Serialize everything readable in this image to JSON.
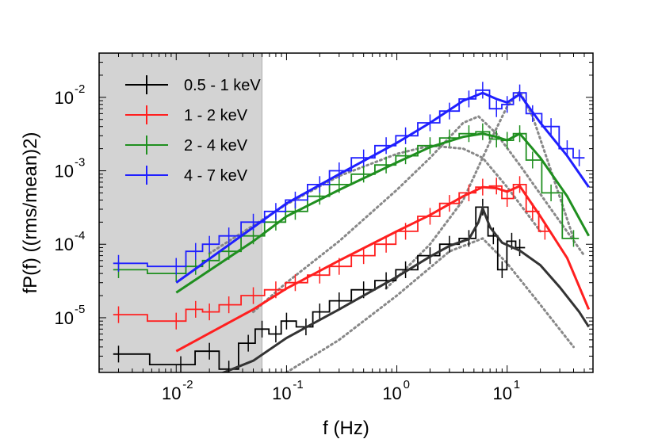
{
  "chart_data": {
    "type": "line",
    "xlabel": "f (Hz)",
    "ylabel": "fP(f) ((rms/mean)2)",
    "xscale": "log",
    "yscale": "log",
    "xlim": [
      0.002,
      60
    ],
    "ylim": [
      1.8e-06,
      0.04
    ],
    "grid": false,
    "legend_position": "top-left",
    "shaded_region": {
      "x_from": 0.002,
      "x_to": 0.06,
      "color": "#d3d3d3"
    },
    "x_ticks": [
      {
        "base": "10",
        "exp": "-2",
        "value": 0.01
      },
      {
        "base": "10",
        "exp": "-1",
        "value": 0.1
      },
      {
        "base": "10",
        "exp": "0",
        "value": 1
      },
      {
        "base": "10",
        "exp": "1",
        "value": 10
      }
    ],
    "y_ticks": [
      {
        "base": "10",
        "exp": "-5",
        "value": 1e-05
      },
      {
        "base": "10",
        "exp": "-4",
        "value": 0.0001
      },
      {
        "base": "10",
        "exp": "-3",
        "value": 0.001
      },
      {
        "base": "10",
        "exp": "-2",
        "value": 0.01
      }
    ],
    "series": [
      {
        "name": "0.5 - 1 keV",
        "color": "#000000",
        "model_color": "#333333",
        "data": [
          [
            0.003,
            3.2e-06
          ],
          [
            0.011,
            2.3e-06
          ],
          [
            0.02,
            3.5e-06
          ],
          [
            0.03,
            2e-06
          ],
          [
            0.045,
            4.5e-06
          ],
          [
            0.06,
            7e-06
          ],
          [
            0.08,
            6e-06
          ],
          [
            0.1,
            9e-06
          ],
          [
            0.15,
            7.5e-06
          ],
          [
            0.2,
            1.2e-05
          ],
          [
            0.3,
            1.7e-05
          ],
          [
            0.5,
            2.4e-05
          ],
          [
            0.8,
            3.2e-05
          ],
          [
            1.2,
            4.5e-05
          ],
          [
            2,
            7e-05
          ],
          [
            3,
            0.0001
          ],
          [
            4.5,
            0.00012
          ],
          [
            6,
            0.00032
          ],
          [
            7.5,
            0.00013
          ],
          [
            9,
            4.5e-05
          ],
          [
            11,
            0.00011
          ],
          [
            13,
            9e-05
          ]
        ],
        "model": [
          [
            0.02,
            1.5e-06
          ],
          [
            0.05,
            2.6e-06
          ],
          [
            0.1,
            5.3e-06
          ],
          [
            0.3,
            1.3e-05
          ],
          [
            1,
            3.6e-05
          ],
          [
            2,
            6.8e-05
          ],
          [
            3,
            9.5e-05
          ],
          [
            4.5,
            0.000118
          ],
          [
            5.5,
            0.0002
          ],
          [
            6,
            0.00031
          ],
          [
            7,
            0.00017
          ],
          [
            9,
            0.000105
          ],
          [
            13,
            8.2e-05
          ],
          [
            20,
            5.2e-05
          ],
          [
            30,
            2.6e-05
          ],
          [
            45,
            1.2e-05
          ],
          [
            55,
            7.5e-06
          ]
        ]
      },
      {
        "name": "1 - 2 keV",
        "color": "#ff1f1f",
        "model_color": "#ff1f1f",
        "data": [
          [
            0.003,
            1.1e-05
          ],
          [
            0.01,
            9e-06
          ],
          [
            0.015,
            1.3e-05
          ],
          [
            0.02,
            1.2e-05
          ],
          [
            0.03,
            1.5e-05
          ],
          [
            0.05,
            2e-05
          ],
          [
            0.08,
            2.4e-05
          ],
          [
            0.12,
            3e-05
          ],
          [
            0.2,
            3.8e-05
          ],
          [
            0.3,
            5e-05
          ],
          [
            0.5,
            7e-05
          ],
          [
            0.8,
            0.0001
          ],
          [
            1.2,
            0.00015
          ],
          [
            2,
            0.00024
          ],
          [
            3,
            0.00036
          ],
          [
            4.5,
            0.0005
          ],
          [
            6,
            0.0006
          ],
          [
            8,
            0.00062
          ],
          [
            10,
            0.00042
          ],
          [
            13,
            0.00065
          ],
          [
            17,
            0.00028
          ],
          [
            22,
            0.00015
          ]
        ],
        "model": [
          [
            0.01,
            3.5e-06
          ],
          [
            0.05,
            1.3e-05
          ],
          [
            0.1,
            2.5e-05
          ],
          [
            0.3,
            6e-05
          ],
          [
            1,
            0.00015
          ],
          [
            2,
            0.00025
          ],
          [
            4,
            0.00045
          ],
          [
            6,
            0.0006
          ],
          [
            8,
            0.00058
          ],
          [
            10,
            0.00052
          ],
          [
            13,
            0.00062
          ],
          [
            20,
            0.00024
          ],
          [
            35,
            6.5e-05
          ],
          [
            55,
            1.3e-05
          ]
        ]
      },
      {
        "name": "2 - 4 keV",
        "color": "#1f8f1f",
        "model_color": "#1f8f1f",
        "data": [
          [
            0.003,
            4.5e-05
          ],
          [
            0.01,
            4e-05
          ],
          [
            0.015,
            5e-05
          ],
          [
            0.02,
            6e-05
          ],
          [
            0.03,
            8e-05
          ],
          [
            0.05,
            0.00013
          ],
          [
            0.08,
            0.0002
          ],
          [
            0.12,
            0.00028
          ],
          [
            0.2,
            0.00045
          ],
          [
            0.3,
            0.00065
          ],
          [
            0.5,
            0.0009
          ],
          [
            0.8,
            0.0012
          ],
          [
            1.2,
            0.0016
          ],
          [
            2,
            0.0022
          ],
          [
            3,
            0.0028
          ],
          [
            4.5,
            0.0032
          ],
          [
            6,
            0.0034
          ],
          [
            8,
            0.0027
          ],
          [
            10,
            0.0026
          ],
          [
            13,
            0.0032
          ],
          [
            17,
            0.0014
          ],
          [
            25,
            0.0005
          ],
          [
            40,
            0.00012
          ]
        ],
        "model": [
          [
            0.01,
            2.2e-05
          ],
          [
            0.05,
            0.00011
          ],
          [
            0.1,
            0.00024
          ],
          [
            0.3,
            0.00055
          ],
          [
            1,
            0.0013
          ],
          [
            2,
            0.0021
          ],
          [
            4,
            0.0029
          ],
          [
            6,
            0.0032
          ],
          [
            8,
            0.0029
          ],
          [
            10,
            0.0026
          ],
          [
            13,
            0.0032
          ],
          [
            20,
            0.0015
          ],
          [
            35,
            0.00045
          ],
          [
            55,
            0.00013
          ]
        ]
      },
      {
        "name": "4 - 7 keV",
        "color": "#1f1fff",
        "model_color": "#1f1fff",
        "data": [
          [
            0.003,
            5.5e-05
          ],
          [
            0.01,
            5e-05
          ],
          [
            0.015,
            8e-05
          ],
          [
            0.02,
            0.0001
          ],
          [
            0.03,
            0.00013
          ],
          [
            0.05,
            0.0002
          ],
          [
            0.08,
            0.00028
          ],
          [
            0.12,
            0.0004
          ],
          [
            0.2,
            0.00065
          ],
          [
            0.3,
            0.001
          ],
          [
            0.5,
            0.0015
          ],
          [
            0.8,
            0.0022
          ],
          [
            1.2,
            0.003
          ],
          [
            2,
            0.0045
          ],
          [
            3,
            0.0065
          ],
          [
            4.5,
            0.0095
          ],
          [
            6,
            0.0125
          ],
          [
            8,
            0.007
          ],
          [
            10,
            0.008
          ],
          [
            13,
            0.0115
          ],
          [
            17,
            0.006
          ],
          [
            25,
            0.004
          ],
          [
            35,
            0.002
          ],
          [
            45,
            0.0015
          ]
        ],
        "model": [
          [
            0.01,
            3e-05
          ],
          [
            0.05,
            0.00017
          ],
          [
            0.1,
            0.00036
          ],
          [
            0.3,
            0.0009
          ],
          [
            1,
            0.0024
          ],
          [
            2,
            0.0045
          ],
          [
            4,
            0.009
          ],
          [
            6,
            0.0115
          ],
          [
            8,
            0.0095
          ],
          [
            10,
            0.0085
          ],
          [
            13,
            0.011
          ],
          [
            20,
            0.0045
          ],
          [
            35,
            0.0016
          ],
          [
            55,
            0.0006
          ]
        ]
      }
    ],
    "components": [
      {
        "color": "#888888",
        "points": [
          [
            0.05,
            1.2e-05
          ],
          [
            0.1,
            3e-05
          ],
          [
            0.3,
            0.00011
          ],
          [
            1,
            0.00055
          ],
          [
            2,
            0.0015
          ],
          [
            4,
            0.0045
          ],
          [
            5.5,
            0.0055
          ],
          [
            8,
            0.0032
          ],
          [
            13,
            0.0012
          ],
          [
            25,
            0.0003
          ],
          [
            50,
            7e-05
          ]
        ]
      },
      {
        "color": "#888888",
        "points": [
          [
            0.1,
            1.8e-06
          ],
          [
            0.3,
            5e-06
          ],
          [
            1,
            2e-05
          ],
          [
            3,
            8e-05
          ],
          [
            6,
            0.00012
          ],
          [
            10,
            5.5e-05
          ],
          [
            20,
            1.5e-05
          ],
          [
            40,
            4e-06
          ]
        ]
      },
      {
        "color": "#888888",
        "points": [
          [
            0.02,
            7.5e-05
          ],
          [
            0.05,
            0.00018
          ],
          [
            0.1,
            0.00035
          ],
          [
            0.3,
            0.00085
          ],
          [
            1,
            0.0017
          ],
          [
            2,
            0.0022
          ],
          [
            4,
            0.002
          ],
          [
            6,
            0.0015
          ],
          [
            10,
            0.0006
          ],
          [
            20,
            0.00015
          ]
        ]
      },
      {
        "color": "#888888",
        "points": [
          [
            0.8,
            2.5e-05
          ],
          [
            2,
            0.0001
          ],
          [
            4,
            0.0004
          ],
          [
            7,
            0.0025
          ],
          [
            10,
            0.0075
          ],
          [
            13,
            0.012
          ],
          [
            17,
            0.0055
          ],
          [
            25,
            0.001
          ],
          [
            40,
            0.00012
          ]
        ]
      }
    ]
  }
}
